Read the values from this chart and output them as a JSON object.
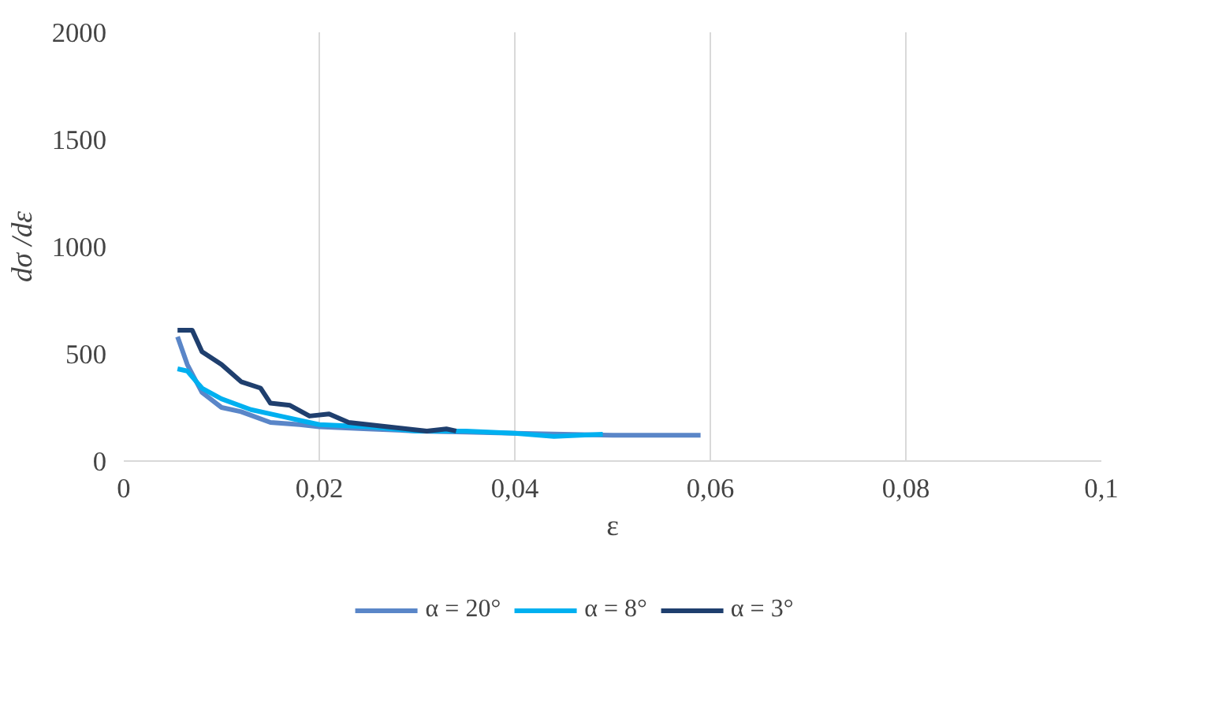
{
  "chart_data": {
    "type": "line",
    "xlabel": "ε",
    "ylabel": "dσ /dε",
    "xlim": [
      0,
      0.1
    ],
    "xticks": [
      {
        "value": 0,
        "label": "0"
      },
      {
        "value": 0.02,
        "label": "0,02"
      },
      {
        "value": 0.04,
        "label": "0,04"
      },
      {
        "value": 0.06,
        "label": "0,06"
      },
      {
        "value": 0.08,
        "label": "0,08"
      },
      {
        "value": 0.1,
        "label": "0,1"
      }
    ],
    "ylim": [
      0,
      2000
    ],
    "yticks": [
      0,
      500,
      1000,
      1500,
      2000
    ],
    "grid": "x",
    "legend": "bottom",
    "line_style": "solid",
    "series": [
      {
        "name": "α = 20°",
        "color": "#5a86c8",
        "x": [
          0.0055,
          0.0065,
          0.008,
          0.01,
          0.012,
          0.015,
          0.018,
          0.02,
          0.025,
          0.03,
          0.035,
          0.04,
          0.045,
          0.05,
          0.055,
          0.059
        ],
        "values": [
          580,
          450,
          320,
          250,
          230,
          180,
          170,
          160,
          150,
          140,
          135,
          130,
          125,
          120,
          120,
          120
        ]
      },
      {
        "name": "α = 8°",
        "color": "#00b0f0",
        "x": [
          0.0055,
          0.0065,
          0.008,
          0.01,
          0.013,
          0.016,
          0.02,
          0.025,
          0.03,
          0.035,
          0.04,
          0.044,
          0.049
        ],
        "values": [
          430,
          420,
          340,
          290,
          240,
          210,
          170,
          160,
          140,
          140,
          130,
          115,
          125
        ]
      },
      {
        "name": "α = 3°",
        "color": "#1f3f6e",
        "x": [
          0.0055,
          0.007,
          0.008,
          0.01,
          0.012,
          0.014,
          0.015,
          0.017,
          0.019,
          0.021,
          0.023,
          0.025,
          0.027,
          0.029,
          0.031,
          0.033,
          0.034
        ],
        "values": [
          610,
          610,
          510,
          450,
          370,
          340,
          270,
          260,
          210,
          220,
          180,
          170,
          160,
          150,
          140,
          150,
          140
        ]
      }
    ]
  }
}
